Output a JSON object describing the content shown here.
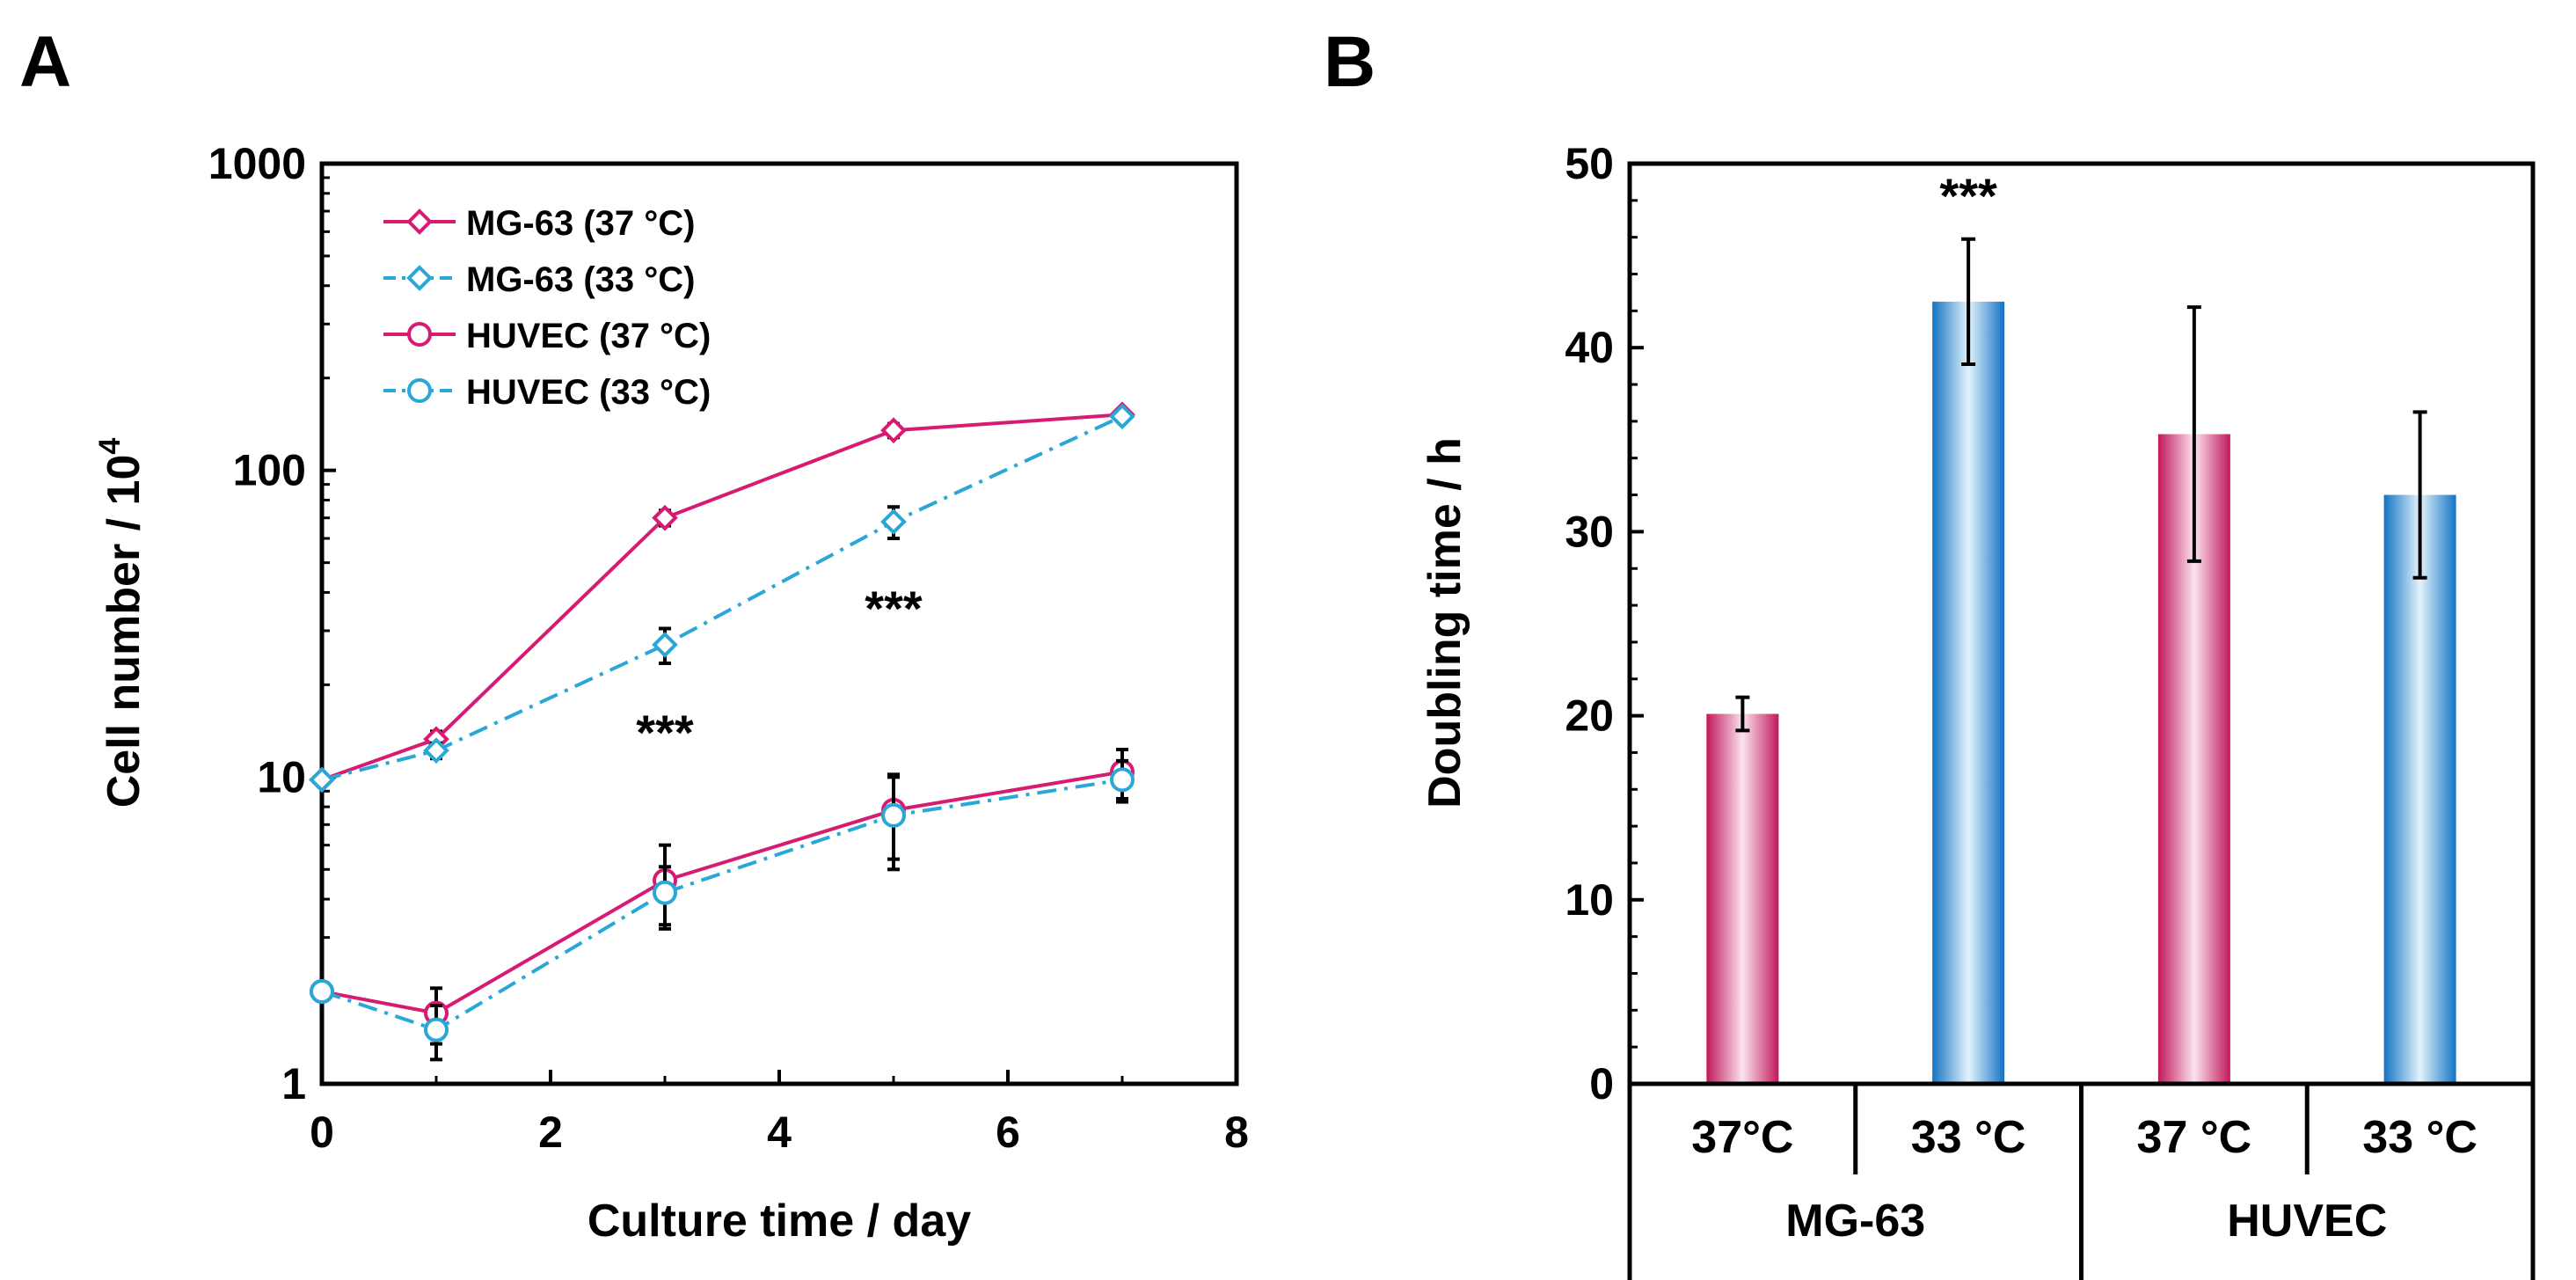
{
  "panel_a_label": "A",
  "panel_b_label": "B",
  "colors": {
    "magenta": "#D81B72",
    "cyan": "#2AA7D6",
    "blue": "#1B7DC7",
    "black": "#000000"
  },
  "chart_data": [
    {
      "type": "line",
      "panel": "A",
      "title": "",
      "xlabel": "Culture time / day",
      "ylabel_main": "Cell number / 10",
      "ylabel_sup": "4",
      "yscale": "log",
      "xlim": [
        0,
        8
      ],
      "ylim": [
        1,
        1000
      ],
      "x_ticks": [
        0,
        2,
        4,
        6,
        8
      ],
      "x_tick_labels": [
        "0",
        "2",
        "4",
        "6",
        "8"
      ],
      "y_ticks": [
        1,
        10,
        100,
        1000
      ],
      "y_tick_labels": [
        "1",
        "10",
        "100",
        "1000"
      ],
      "legend_position": "top-left",
      "series": [
        {
          "name": "MG-63 (37 °C)",
          "marker": "diamond",
          "dash": "solid",
          "color": "#D81B72",
          "x": [
            0,
            1,
            3,
            5,
            7
          ],
          "y": [
            9.8,
            13.3,
            70,
            135,
            152
          ],
          "err": [
            0,
            0.8,
            4,
            7,
            6
          ]
        },
        {
          "name": "MG-63 (33 °C)",
          "marker": "diamond",
          "dash": "dashdot",
          "color": "#2AA7D6",
          "x": [
            0,
            1,
            3,
            5,
            7
          ],
          "y": [
            9.8,
            12.2,
            27,
            68,
            150
          ],
          "err": [
            0,
            0.7,
            3.5,
            8,
            6
          ]
        },
        {
          "name": "HUVEC (37 °C)",
          "marker": "circle",
          "dash": "solid",
          "color": "#D81B72",
          "x": [
            0,
            1,
            3,
            5,
            7
          ],
          "y": [
            2.0,
            1.7,
            4.6,
            7.8,
            10.4
          ],
          "err": [
            0,
            0.35,
            1.4,
            2.4,
            1.9
          ]
        },
        {
          "name": "HUVEC (33 °C)",
          "marker": "circle",
          "dash": "dashdot",
          "color": "#2AA7D6",
          "x": [
            0,
            1,
            3,
            5,
            7
          ],
          "y": [
            2.0,
            1.5,
            4.2,
            7.5,
            9.8
          ],
          "err": [
            0,
            0.3,
            0.9,
            2.5,
            1.5
          ]
        }
      ],
      "annotations": [
        {
          "text": "***",
          "x": 3,
          "y": 15
        },
        {
          "text": "***",
          "x": 5,
          "y": 38
        }
      ]
    },
    {
      "type": "bar",
      "panel": "B",
      "title": "",
      "ylabel": "Doubling time / h",
      "ylim": [
        0,
        50
      ],
      "y_ticks": [
        0,
        10,
        20,
        30,
        40,
        50
      ],
      "y_tick_labels": [
        "0",
        "10",
        "20",
        "30",
        "40",
        "50"
      ],
      "categories": [
        "37°C",
        "33 °C",
        "37 °C",
        "33 °C"
      ],
      "groups": [
        "MG-63",
        "HUVEC"
      ],
      "values": [
        20.1,
        42.5,
        35.3,
        32.0
      ],
      "errors": [
        0.9,
        3.4,
        6.9,
        4.5
      ],
      "bar_colors": [
        "#D81B72",
        "#1B7DC7",
        "#D81B72",
        "#1B7DC7"
      ],
      "annotations": [
        {
          "text": "***",
          "bar": 1
        }
      ]
    }
  ]
}
